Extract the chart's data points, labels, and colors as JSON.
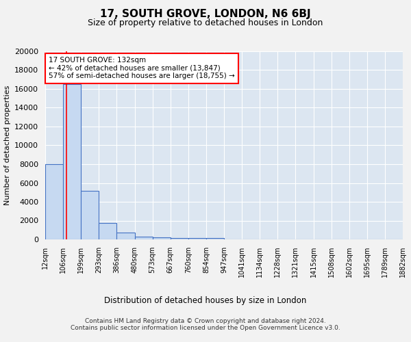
{
  "title": "17, SOUTH GROVE, LONDON, N6 6BJ",
  "subtitle": "Size of property relative to detached houses in London",
  "xlabel": "Distribution of detached houses by size in London",
  "ylabel": "Number of detached properties",
  "bin_labels": [
    "12sqm",
    "106sqm",
    "199sqm",
    "293sqm",
    "386sqm",
    "480sqm",
    "573sqm",
    "667sqm",
    "760sqm",
    "854sqm",
    "947sqm",
    "1041sqm",
    "1134sqm",
    "1228sqm",
    "1321sqm",
    "1415sqm",
    "1508sqm",
    "1602sqm",
    "1695sqm",
    "1789sqm",
    "1882sqm"
  ],
  "bar_heights": [
    8000,
    16500,
    5200,
    1750,
    700,
    320,
    220,
    180,
    150,
    130,
    0,
    0,
    0,
    0,
    0,
    0,
    0,
    0,
    0,
    0
  ],
  "bar_color": "#c6d9f1",
  "bar_edge_color": "#4472c4",
  "background_color": "#dce6f1",
  "fig_background_color": "#f2f2f2",
  "red_line_x": 1.18,
  "annotation_text": "17 SOUTH GROVE: 132sqm\n← 42% of detached houses are smaller (13,847)\n57% of semi-detached houses are larger (18,755) →",
  "annotation_box_color": "#ffffff",
  "annotation_box_edge_color": "#ff0000",
  "ylim": [
    0,
    20000
  ],
  "yticks": [
    0,
    2000,
    4000,
    6000,
    8000,
    10000,
    12000,
    14000,
    16000,
    18000,
    20000
  ],
  "footer_line1": "Contains HM Land Registry data © Crown copyright and database right 2024.",
  "footer_line2": "Contains public sector information licensed under the Open Government Licence v3.0."
}
